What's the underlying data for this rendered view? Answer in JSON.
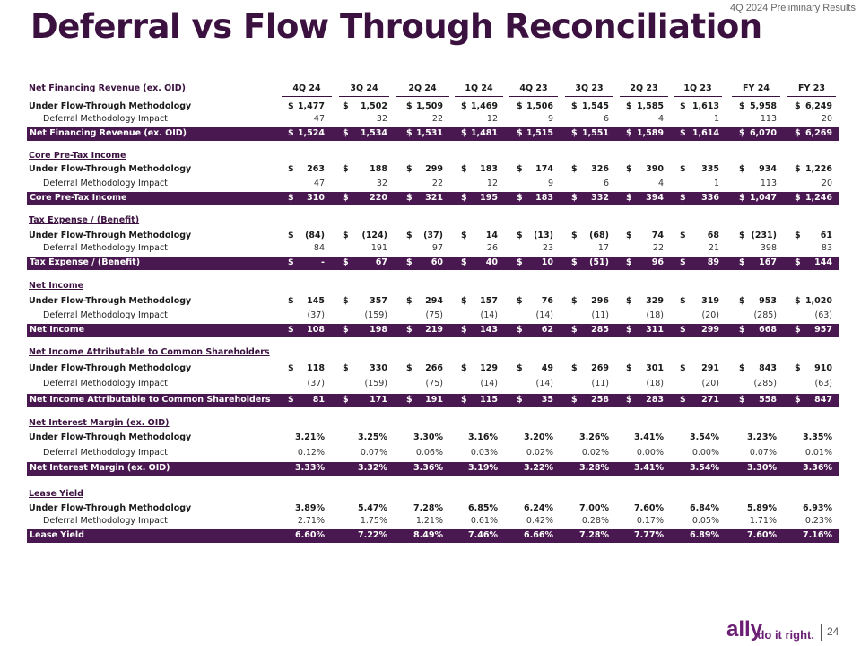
{
  "header": {
    "title": "Deferral vs Flow Through Reconciliation",
    "subtitle": "4Q 2024 Preliminary Results"
  },
  "table": {
    "columns": [
      "4Q 24",
      "3Q 24",
      "2Q 24",
      "1Q 24",
      "4Q 23",
      "3Q 23",
      "2Q 23",
      "1Q 23",
      "FY 24",
      "FY 23"
    ],
    "currency_symbol": "$",
    "sections": [
      {
        "title": "Net Financing Revenue (ex. OID)",
        "dollar": true,
        "rows": [
          {
            "label": "Under Flow-Through Methodology",
            "values": [
              "1,477",
              "1,502",
              "1,509",
              "1,469",
              "1,506",
              "1,545",
              "1,585",
              "1,613",
              "5,958",
              "6,249"
            ]
          },
          {
            "label": "Deferral Methodology Impact",
            "values": [
              "47",
              "32",
              "22",
              "12",
              "9",
              "6",
              "4",
              "1",
              "113",
              "20"
            ]
          }
        ],
        "total": [
          "1,524",
          "1,534",
          "1,531",
          "1,481",
          "1,515",
          "1,551",
          "1,589",
          "1,614",
          "6,070",
          "6,269"
        ]
      },
      {
        "title": "Core Pre-Tax Income",
        "dollar": true,
        "rows": [
          {
            "label": "Under Flow-Through Methodology",
            "values": [
              "263",
              "188",
              "299",
              "183",
              "174",
              "326",
              "390",
              "335",
              "934",
              "1,226"
            ]
          },
          {
            "label": "Deferral Methodology Impact",
            "values": [
              "47",
              "32",
              "22",
              "12",
              "9",
              "6",
              "4",
              "1",
              "113",
              "20"
            ]
          }
        ],
        "total": [
          "310",
          "220",
          "321",
          "195",
          "183",
          "332",
          "394",
          "336",
          "1,047",
          "1,246"
        ]
      },
      {
        "title": "Tax Expense / (Benefit)",
        "dollar": true,
        "rows": [
          {
            "label": "Under Flow-Through Methodology",
            "values": [
              "(84)",
              "(124)",
              "(37)",
              "14",
              "(13)",
              "(68)",
              "74",
              "68",
              "(231)",
              "61"
            ]
          },
          {
            "label": "Deferral Methodology Impact",
            "values": [
              "84",
              "191",
              "97",
              "26",
              "23",
              "17",
              "22",
              "21",
              "398",
              "83"
            ]
          }
        ],
        "total": [
          "-",
          "67",
          "60",
          "40",
          "10",
          "(51)",
          "96",
          "89",
          "167",
          "144"
        ]
      },
      {
        "title": "Net Income",
        "dollar": true,
        "rows": [
          {
            "label": "Under Flow-Through Methodology",
            "values": [
              "145",
              "357",
              "294",
              "157",
              "76",
              "296",
              "329",
              "319",
              "953",
              "1,020"
            ]
          },
          {
            "label": "Deferral Methodology Impact",
            "values": [
              "(37)",
              "(159)",
              "(75)",
              "(14)",
              "(14)",
              "(11)",
              "(18)",
              "(20)",
              "(285)",
              "(63)"
            ]
          }
        ],
        "total": [
          "108",
          "198",
          "219",
          "143",
          "62",
          "285",
          "311",
          "299",
          "668",
          "957"
        ]
      },
      {
        "title": "Net Income Attributable to Common Shareholders",
        "dollar": true,
        "rows": [
          {
            "label": "Under Flow-Through Methodology",
            "values": [
              "118",
              "330",
              "266",
              "129",
              "49",
              "269",
              "301",
              "291",
              "843",
              "910"
            ]
          },
          {
            "label": "Deferral Methodology Impact",
            "values": [
              "(37)",
              "(159)",
              "(75)",
              "(14)",
              "(14)",
              "(11)",
              "(18)",
              "(20)",
              "(285)",
              "(63)"
            ]
          }
        ],
        "total": [
          "81",
          "171",
          "191",
          "115",
          "35",
          "258",
          "283",
          "271",
          "558",
          "847"
        ]
      },
      {
        "title": "Net Interest Margin (ex. OID)",
        "dollar": false,
        "rows": [
          {
            "label": "Under Flow-Through Methodology",
            "values": [
              "3.21%",
              "3.25%",
              "3.30%",
              "3.16%",
              "3.20%",
              "3.26%",
              "3.41%",
              "3.54%",
              "3.23%",
              "3.35%"
            ]
          },
          {
            "label": "Deferral Methodology Impact",
            "values": [
              "0.12%",
              "0.07%",
              "0.06%",
              "0.03%",
              "0.02%",
              "0.02%",
              "0.00%",
              "0.00%",
              "0.07%",
              "0.01%"
            ]
          }
        ],
        "total": [
          "3.33%",
          "3.32%",
          "3.36%",
          "3.19%",
          "3.22%",
          "3.28%",
          "3.41%",
          "3.54%",
          "3.30%",
          "3.36%"
        ]
      },
      {
        "title": "Lease Yield",
        "dollar": false,
        "rows": [
          {
            "label": "Under Flow-Through Methodology",
            "values": [
              "3.89%",
              "5.47%",
              "7.28%",
              "6.85%",
              "6.24%",
              "7.00%",
              "7.60%",
              "6.84%",
              "5.89%",
              "6.93%"
            ]
          },
          {
            "label": "Deferral Methodology Impact",
            "values": [
              "2.71%",
              "1.75%",
              "1.21%",
              "0.61%",
              "0.42%",
              "0.28%",
              "0.17%",
              "0.05%",
              "1.71%",
              "0.23%"
            ]
          }
        ],
        "total": [
          "6.60%",
          "7.22%",
          "8.49%",
          "7.46%",
          "6.66%",
          "7.28%",
          "7.77%",
          "6.89%",
          "7.60%",
          "7.16%"
        ]
      }
    ]
  },
  "footer": {
    "logo": "ally",
    "tagline": "do it right.",
    "page": "24"
  }
}
